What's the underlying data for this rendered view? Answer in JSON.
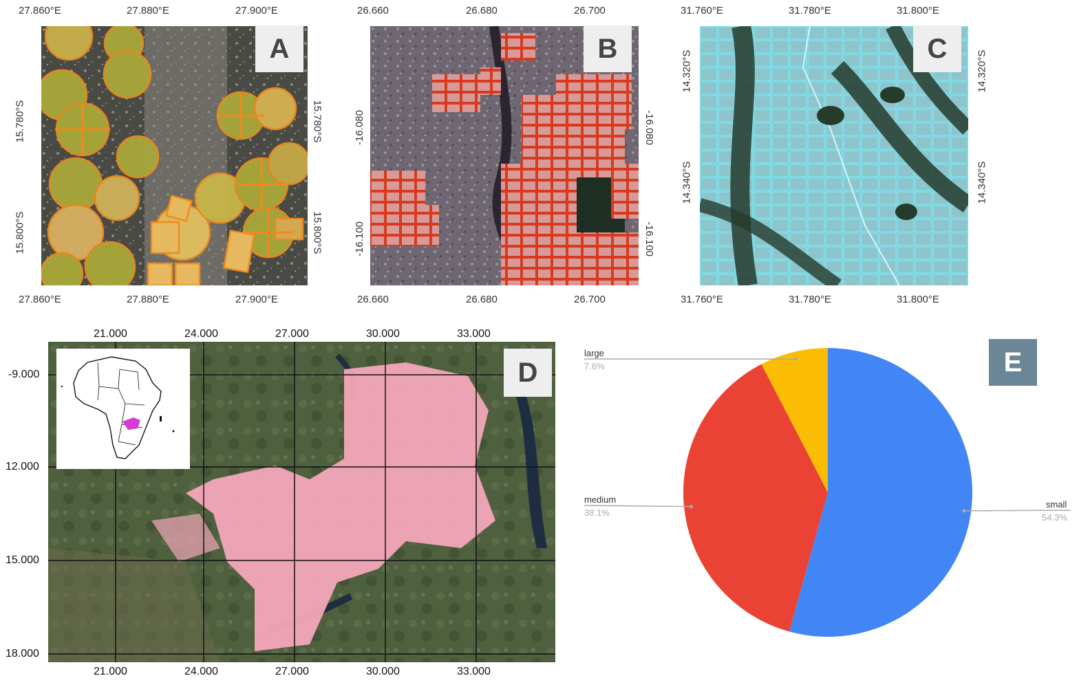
{
  "panel_a": {
    "label": "A",
    "x_ticks": [
      "27.860°E",
      "27.880°E",
      "27.900°E"
    ],
    "y_ticks": [
      "15.780°S",
      "15.800°S"
    ]
  },
  "panel_b": {
    "label": "B",
    "x_ticks": [
      "26.660",
      "26.680",
      "26.700"
    ],
    "y_ticks": [
      "-16.080",
      "-16.100"
    ]
  },
  "panel_c": {
    "label": "C",
    "x_ticks": [
      "31.760°E",
      "31.780°E",
      "31.800°E"
    ],
    "y_ticks": [
      "14.320°S",
      "14.340°S"
    ]
  },
  "panel_d": {
    "label": "D",
    "x_ticks": [
      "21.000",
      "24.000",
      "27.000",
      "30.000",
      "33.000"
    ],
    "y_ticks": [
      "-9.000",
      "12.000",
      "15.000",
      "18.000"
    ]
  },
  "panel_e": {
    "label": "E"
  },
  "colors": {
    "small": "#4285f4",
    "medium": "#ea4335",
    "large": "#fbbc04",
    "field_outline_a": "#f08a1c",
    "field_outline_b": "#d63b20",
    "field_outline_c": "#7fe6f0",
    "cropland_d": "#f4a7b9",
    "inset_highlight": "#d63bd6"
  },
  "chart_data": {
    "type": "pie",
    "slices": [
      {
        "label": "small",
        "value": 54.3,
        "pct_text": "54.3%"
      },
      {
        "label": "medium",
        "value": 38.1,
        "pct_text": "38.1%"
      },
      {
        "label": "large",
        "value": 7.6,
        "pct_text": "7.6%"
      }
    ]
  }
}
